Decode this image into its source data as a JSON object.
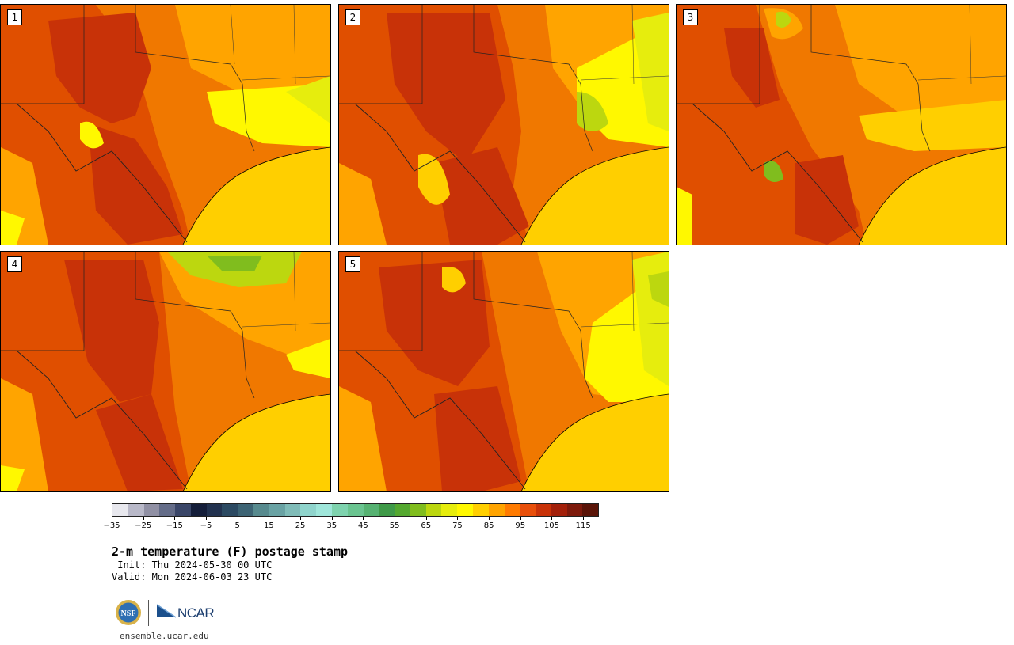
{
  "panels": [
    {
      "label": "1",
      "scheme": "a"
    },
    {
      "label": "2",
      "scheme": "b"
    },
    {
      "label": "3",
      "scheme": "c"
    },
    {
      "label": "4",
      "scheme": "d"
    },
    {
      "label": "5",
      "scheme": "e"
    }
  ],
  "colorbar": {
    "colors": [
      "#e8e8ee",
      "#b8b8c8",
      "#9090a4",
      "#646c88",
      "#3a4668",
      "#151e3a",
      "#22324f",
      "#2c4a62",
      "#3d6474",
      "#578a8e",
      "#6aa3a4",
      "#80bcb8",
      "#8fd4cc",
      "#9fe6da",
      "#7ed3ae",
      "#6ac490",
      "#56b272",
      "#3f9a48",
      "#54a82f",
      "#80bd1e",
      "#bcd70f",
      "#e6ed0d",
      "#fff800",
      "#ffcf00",
      "#ffa400",
      "#ff7b00",
      "#e84f0a",
      "#c83208",
      "#a3200a",
      "#7d1a0c",
      "#5a1408"
    ],
    "tick_labels": [
      "−35",
      "−25",
      "−15",
      "−5",
      "5",
      "15",
      "25",
      "35",
      "45",
      "55",
      "65",
      "75",
      "85",
      "95",
      "105",
      "115"
    ]
  },
  "title": "2-m temperature (F) postage stamp",
  "init": " Init: Thu 2024-05-30 00 UTC",
  "valid": "Valid: Mon 2024-06-03 23 UTC",
  "logos": {
    "nsf": "NSF",
    "ncar": "NCAR"
  },
  "website": "ensemble.ucar.edu"
}
